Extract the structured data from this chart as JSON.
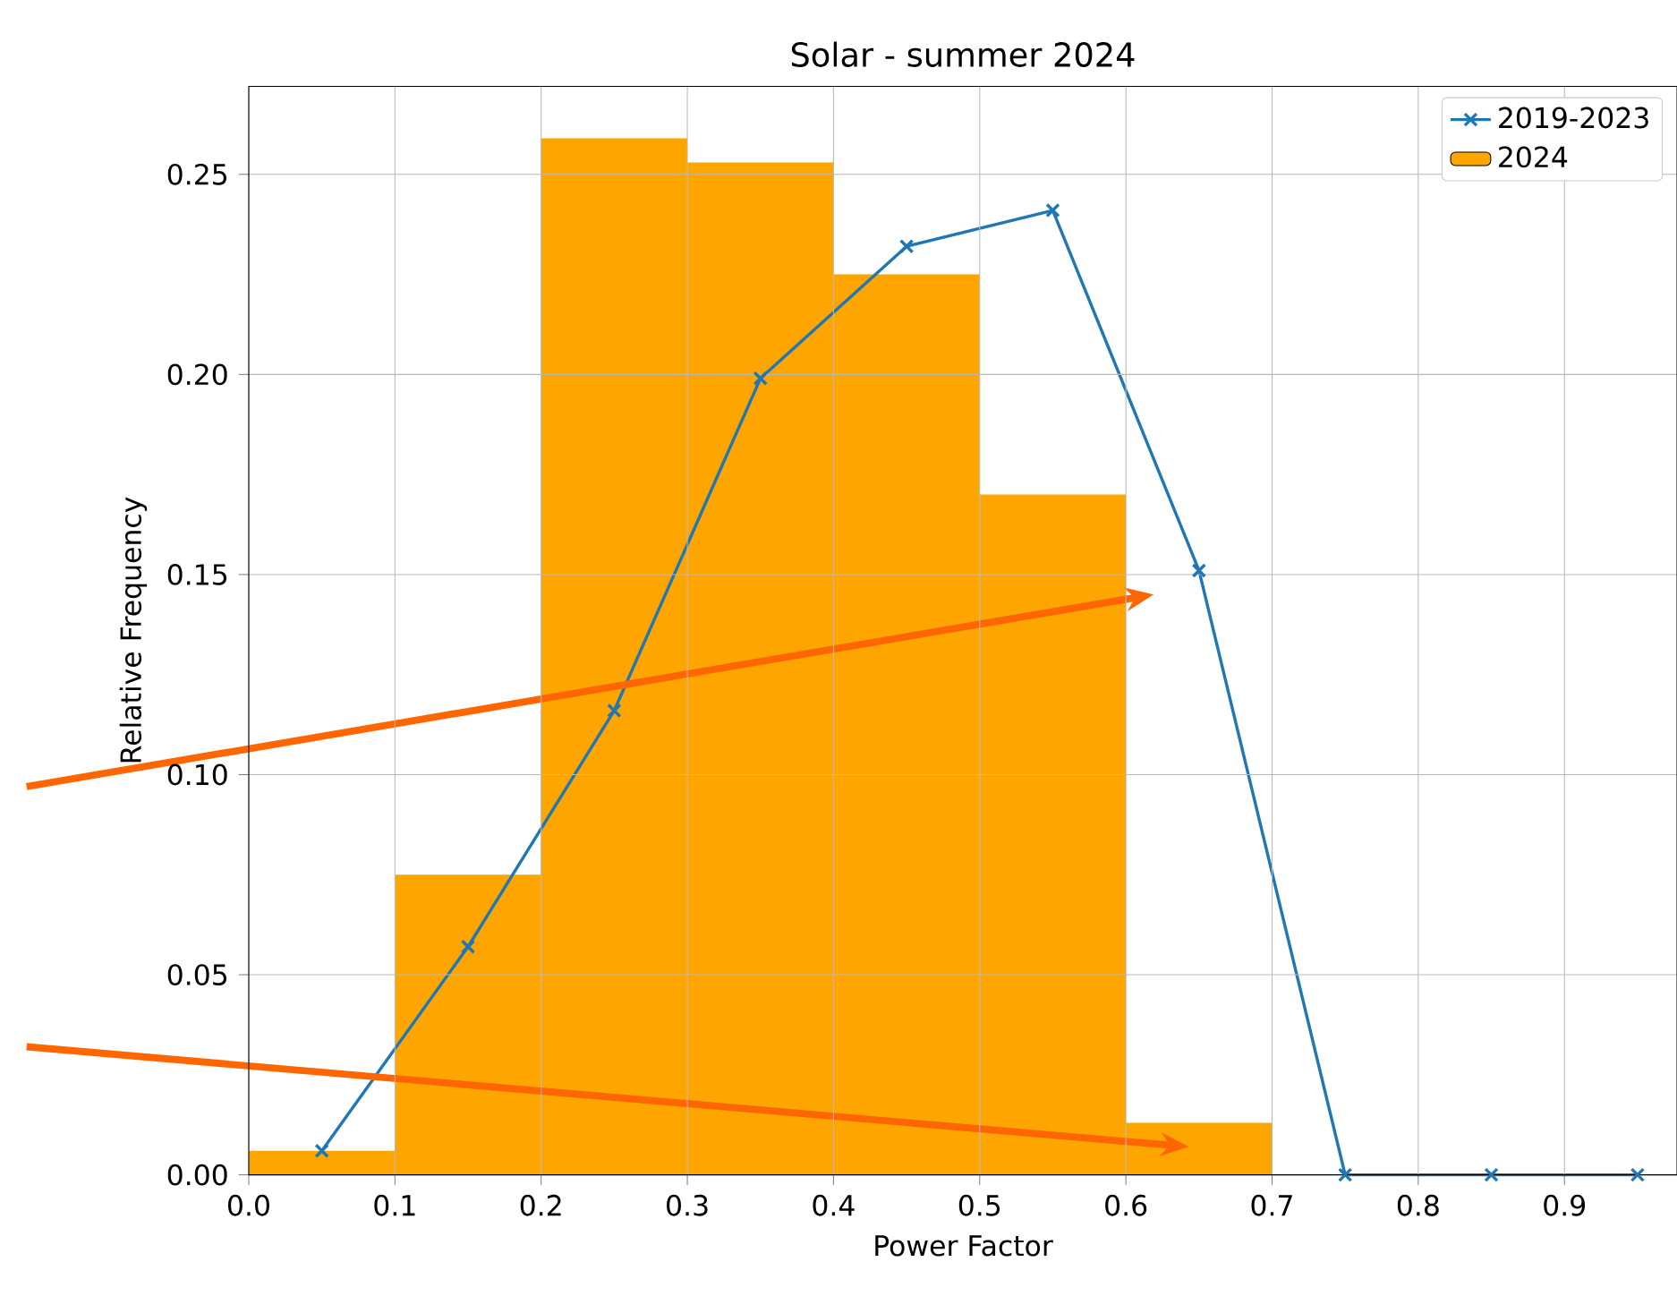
{
  "chart_data": {
    "type": "histogram",
    "title": "Solar - summer 2024",
    "xlabel": "Power Factor",
    "ylabel": "Relative Frequency",
    "series": [
      {
        "name": "2019-2023",
        "type": "line",
        "color": "#1f77b4",
        "marker": "cross",
        "x": [
          0.05,
          0.15,
          0.25,
          0.35,
          0.45,
          0.55,
          0.65,
          0.75,
          0.85,
          0.95
        ],
        "values": [
          0.006,
          0.057,
          0.116,
          0.199,
          0.232,
          0.241,
          0.151,
          0,
          0,
          0
        ]
      },
      {
        "name": "2024",
        "color": "#ffa500",
        "bins": [
          0,
          0.1,
          0.2,
          0.3,
          0.4,
          0.5,
          0.6,
          0.7
        ],
        "values": [
          0.006,
          0.075,
          0.259,
          0.253,
          0.225,
          0.17,
          0.013
        ]
      }
    ],
    "xlim": [
      0,
      0.977
    ],
    "ylim": [
      0,
      0.272
    ],
    "xticks": [
      {
        "value": 0,
        "label": "0.0"
      },
      {
        "value": 0.1,
        "label": "0.1"
      },
      {
        "value": 0.2,
        "label": "0.2"
      },
      {
        "value": 0.3,
        "label": "0.3"
      },
      {
        "value": 0.4,
        "label": "0.4"
      },
      {
        "value": 0.5,
        "label": "0.5"
      },
      {
        "value": 0.6,
        "label": "0.6"
      },
      {
        "value": 0.7,
        "label": "0.7"
      },
      {
        "value": 0.8,
        "label": "0.8"
      },
      {
        "value": 0.9,
        "label": "0.9"
      }
    ],
    "yticks": [
      {
        "value": 0,
        "label": "0.00"
      },
      {
        "value": 0.05,
        "label": "0.05"
      },
      {
        "value": 0.1,
        "label": "0.10"
      },
      {
        "value": 0.15,
        "label": "0.15"
      },
      {
        "value": 0.2,
        "label": "0.20"
      },
      {
        "value": 0.25,
        "label": "0.25"
      }
    ],
    "grid": true,
    "legend": "top right"
  }
}
